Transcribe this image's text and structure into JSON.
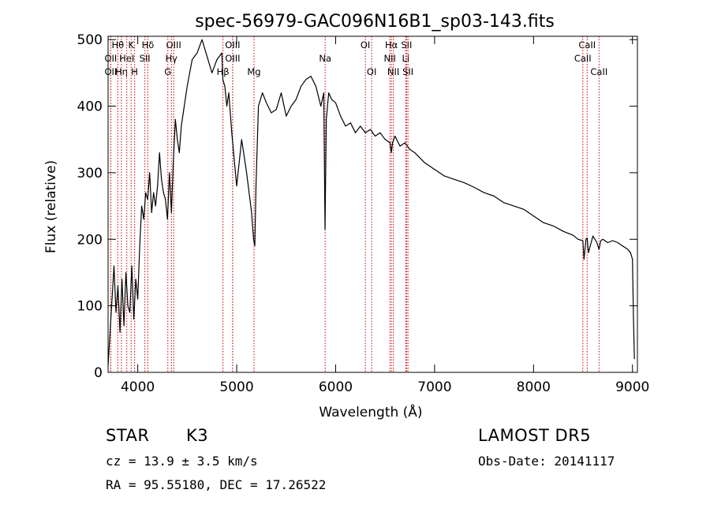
{
  "chart_data": {
    "type": "line",
    "title": "spec-56979-GAC096N16B1_sp03-143.fits",
    "xlabel": "Wavelength (Å)",
    "ylabel": "Flux (relative)",
    "xlim": [
      3700,
      9050
    ],
    "ylim": [
      0,
      505
    ],
    "xticks": [
      4000,
      5000,
      6000,
      7000,
      8000,
      9000
    ],
    "yticks": [
      0,
      100,
      200,
      300,
      400,
      500
    ],
    "grid": false,
    "legend": "none",
    "series": [
      {
        "x": [
          3700,
          3720,
          3740,
          3760,
          3780,
          3800,
          3820,
          3840,
          3860,
          3880,
          3900,
          3920,
          3940,
          3960,
          3980,
          4000,
          4020,
          4040,
          4060,
          4080,
          4100,
          4120,
          4140,
          4160,
          4180,
          4200,
          4220,
          4240,
          4260,
          4280,
          4300,
          4320,
          4340,
          4360,
          4380,
          4400,
          4420,
          4440,
          4460,
          4480,
          4500,
          4550,
          4600,
          4650,
          4700,
          4750,
          4800,
          4850,
          4860,
          4880,
          4900,
          4920,
          4950,
          5000,
          5050,
          5100,
          5150,
          5170,
          5183,
          5195,
          5220,
          5260,
          5300,
          5350,
          5400,
          5450,
          5500,
          5550,
          5600,
          5650,
          5700,
          5750,
          5800,
          5850,
          5880,
          5893,
          5905,
          5930,
          5960,
          6000,
          6050,
          6100,
          6150,
          6200,
          6250,
          6300,
          6350,
          6400,
          6450,
          6500,
          6550,
          6563,
          6575,
          6600,
          6650,
          6700,
          6750,
          6800,
          6900,
          7000,
          7100,
          7200,
          7300,
          7400,
          7500,
          7600,
          7700,
          7800,
          7900,
          8000,
          8100,
          8200,
          8300,
          8400,
          8450,
          8498,
          8510,
          8530,
          8542,
          8555,
          8600,
          8640,
          8662,
          8680,
          8700,
          8750,
          8800,
          8850,
          8900,
          8950,
          8980,
          9000,
          9010,
          9020
        ],
        "y": [
          10,
          60,
          110,
          160,
          90,
          130,
          60,
          140,
          70,
          150,
          100,
          90,
          160,
          80,
          140,
          110,
          190,
          250,
          230,
          270,
          260,
          300,
          240,
          270,
          250,
          280,
          330,
          290,
          270,
          260,
          230,
          300,
          240,
          320,
          380,
          350,
          330,
          370,
          390,
          410,
          430,
          470,
          480,
          500,
          475,
          450,
          470,
          480,
          440,
          430,
          400,
          420,
          360,
          280,
          350,
          300,
          240,
          200,
          190,
          280,
          400,
          420,
          405,
          390,
          395,
          420,
          385,
          400,
          410,
          430,
          440,
          445,
          430,
          400,
          420,
          215,
          380,
          420,
          410,
          405,
          385,
          370,
          375,
          360,
          370,
          360,
          365,
          355,
          360,
          350,
          345,
          330,
          345,
          355,
          340,
          345,
          335,
          330,
          315,
          305,
          295,
          290,
          285,
          278,
          270,
          265,
          255,
          250,
          245,
          235,
          225,
          220,
          212,
          206,
          200,
          198,
          170,
          200,
          202,
          180,
          205,
          195,
          185,
          198,
          200,
          195,
          198,
          195,
          190,
          185,
          180,
          170,
          80,
          20
        ]
      }
    ],
    "line_markers": [
      {
        "label": "Hθ",
        "x": 3798,
        "row": 0
      },
      {
        "label": "OII",
        "x": 3727,
        "row": 1
      },
      {
        "label": "OII",
        "x": 3727,
        "row": 2
      },
      {
        "label": "Hη",
        "x": 3835,
        "row": 2
      },
      {
        "label": "HeI",
        "x": 3889,
        "row": 1
      },
      {
        "label": "K",
        "x": 3933,
        "row": 0
      },
      {
        "label": "H",
        "x": 3968,
        "row": 2
      },
      {
        "label": "SII",
        "x": 4072,
        "row": 1
      },
      {
        "label": "Hδ",
        "x": 4102,
        "row": 0
      },
      {
        "label": "OIII",
        "x": 4363,
        "row": 0
      },
      {
        "label": "Hγ",
        "x": 4340,
        "row": 1
      },
      {
        "label": "G",
        "x": 4304,
        "row": 2
      },
      {
        "label": "OIII",
        "x": 4959,
        "row": 0
      },
      {
        "label": "OIII",
        "x": 4959,
        "row": 1
      },
      {
        "label": "Hβ",
        "x": 4861,
        "row": 2
      },
      {
        "label": "Mg",
        "x": 5175,
        "row": 2
      },
      {
        "label": "Na",
        "x": 5894,
        "row": 1
      },
      {
        "label": "OI",
        "x": 6300,
        "row": 0
      },
      {
        "label": "OI",
        "x": 6364,
        "row": 2
      },
      {
        "label": "Hα",
        "x": 6563,
        "row": 0
      },
      {
        "label": "NII",
        "x": 6548,
        "row": 1
      },
      {
        "label": "NII",
        "x": 6583,
        "row": 2
      },
      {
        "label": "SII",
        "x": 6717,
        "row": 0
      },
      {
        "label": "Li",
        "x": 6708,
        "row": 1
      },
      {
        "label": "SII",
        "x": 6731,
        "row": 2
      },
      {
        "label": "CaII",
        "x": 8542,
        "row": 0
      },
      {
        "label": "CaII",
        "x": 8498,
        "row": 1
      },
      {
        "label": "CaII",
        "x": 8662,
        "row": 2
      }
    ],
    "marker_color": "#cc0000",
    "line_color": "#000000"
  },
  "info": {
    "class_label": "STAR",
    "subclass": "K3",
    "survey": "LAMOST  DR5",
    "cz": "cz = 13.9 ± 3.5 km/s",
    "obs_date": "Obs-Date: 20141117",
    "radec": "RA =  95.55180, DEC =  17.26522"
  }
}
